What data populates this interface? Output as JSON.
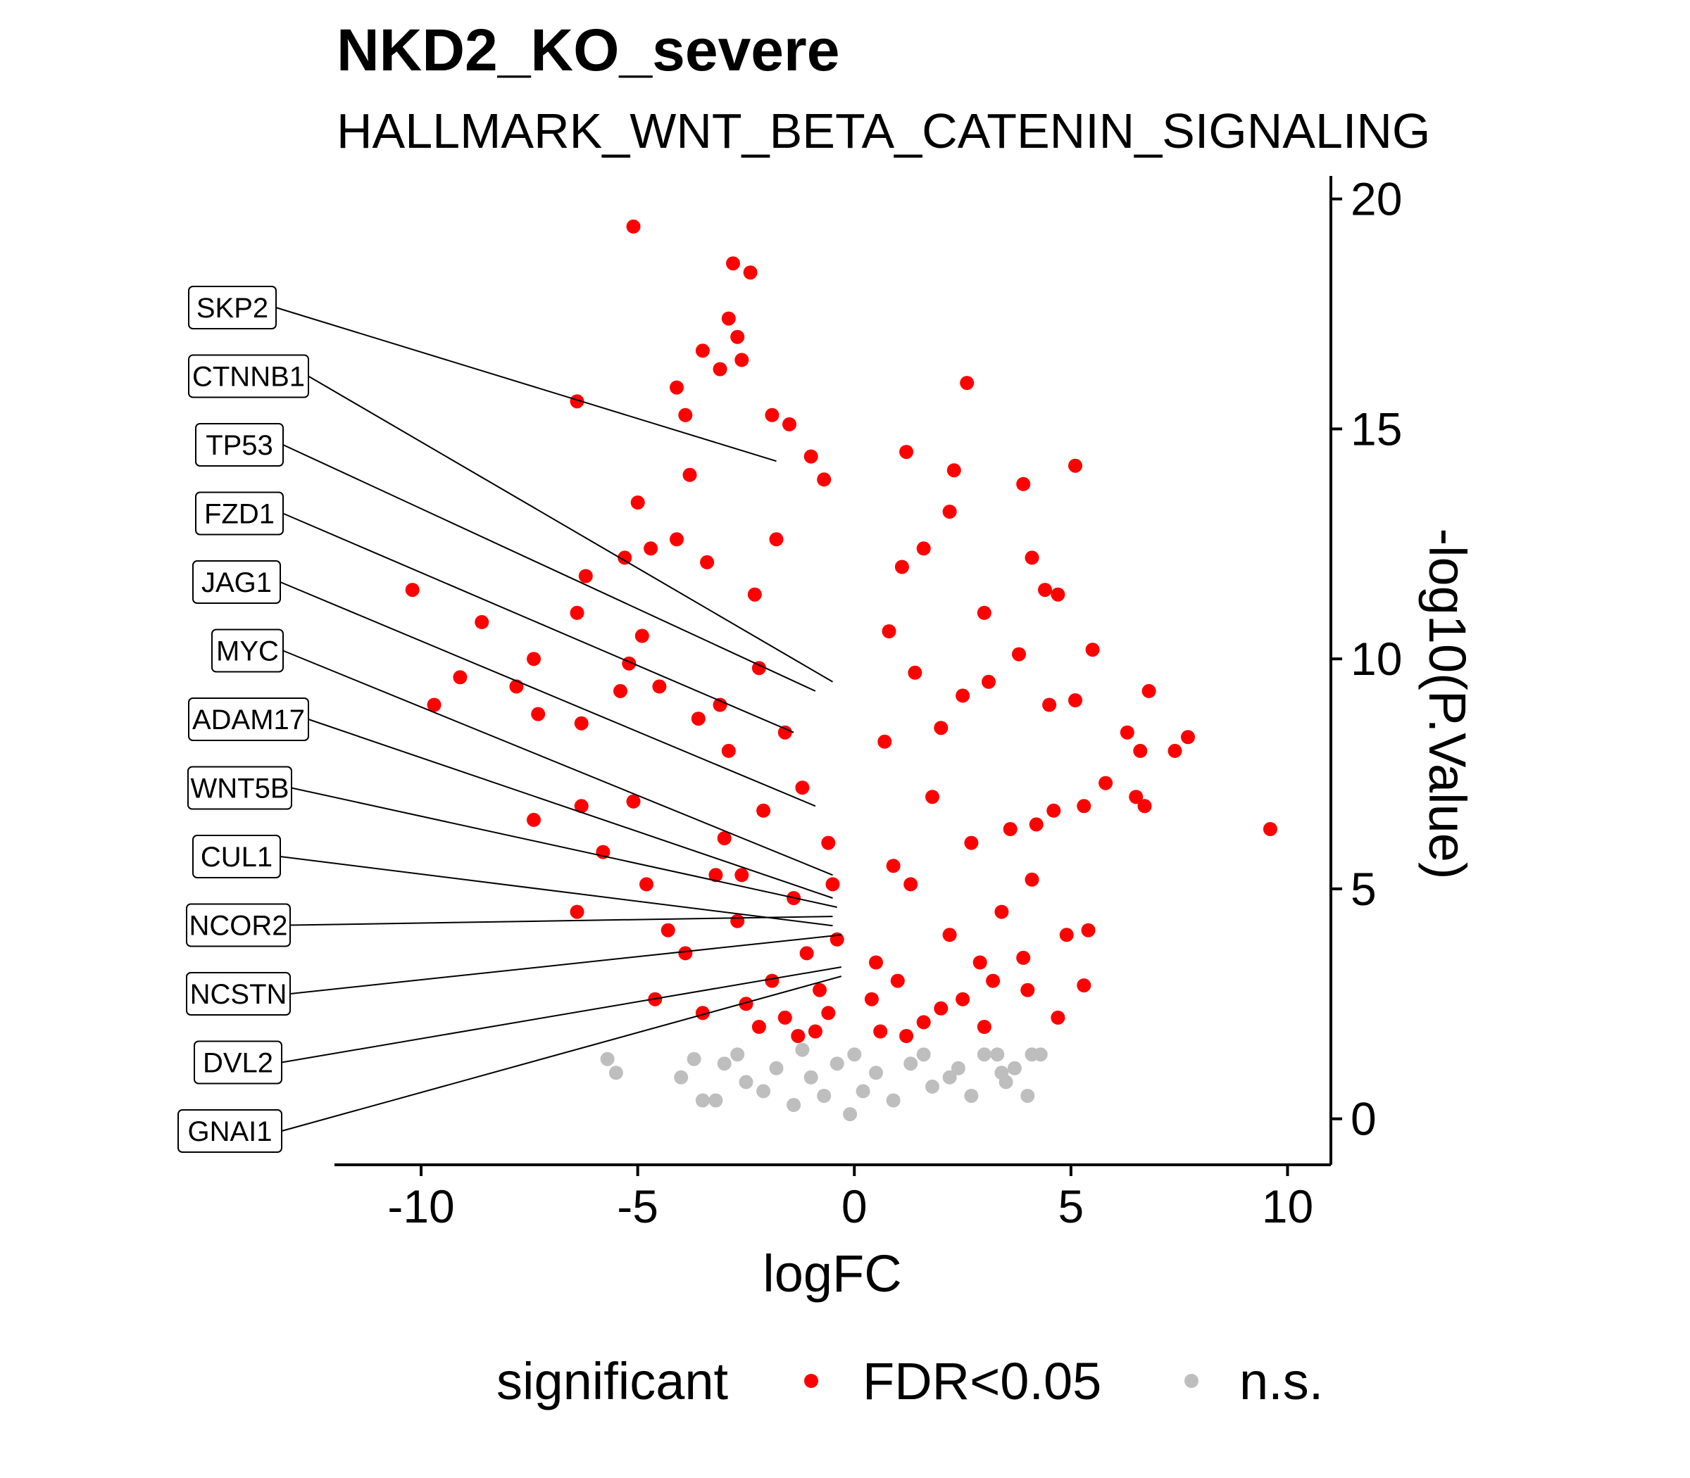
{
  "chart_data": {
    "type": "scatter",
    "title": "NKD2_KO_severe",
    "subtitle": "HALLMARK_WNT_BETA_CATENIN_SIGNALING",
    "xlabel": "logFC",
    "ylabel": "-log10(P.Value)",
    "xlim": [
      -12,
      11
    ],
    "ylim": [
      -1,
      20.5
    ],
    "x_ticks": [
      -10,
      -5,
      0,
      5,
      10
    ],
    "y_ticks": [
      0,
      5,
      10,
      15,
      20
    ],
    "x_tick_labels": [
      "-10",
      "-5",
      "0",
      "5",
      "10"
    ],
    "y_tick_labels": [
      "0",
      "5",
      "10",
      "15",
      "20"
    ],
    "y_axis_position": "right",
    "grid": false,
    "legend": {
      "title": "significant",
      "placement": "bottom",
      "entries": [
        {
          "label": "FDR<0.05",
          "color": "#ff0000"
        },
        {
          "label": "n.s.",
          "color": "#bebebe"
        }
      ]
    },
    "series": [
      {
        "name": "FDR<0.05",
        "color": "#ff0000",
        "points": [
          [
            -5.1,
            19.4
          ],
          [
            -2.8,
            18.6
          ],
          [
            -2.4,
            18.4
          ],
          [
            -2.9,
            17.4
          ],
          [
            -2.7,
            17.0
          ],
          [
            -3.5,
            16.7
          ],
          [
            -2.6,
            16.5
          ],
          [
            -3.1,
            16.3
          ],
          [
            -4.1,
            15.9
          ],
          [
            -6.4,
            15.6
          ],
          [
            2.6,
            16.0
          ],
          [
            -1.9,
            15.3
          ],
          [
            -1.5,
            15.1
          ],
          [
            -3.9,
            15.3
          ],
          [
            1.2,
            14.5
          ],
          [
            -1.0,
            14.4
          ],
          [
            -3.8,
            14.0
          ],
          [
            -5.0,
            13.4
          ],
          [
            -0.7,
            13.9
          ],
          [
            5.1,
            14.2
          ],
          [
            3.9,
            13.8
          ],
          [
            2.3,
            14.1
          ],
          [
            2.2,
            13.2
          ],
          [
            -5.3,
            12.2
          ],
          [
            -4.7,
            12.4
          ],
          [
            -6.2,
            11.8
          ],
          [
            -4.1,
            12.6
          ],
          [
            1.6,
            12.4
          ],
          [
            4.1,
            12.2
          ],
          [
            4.4,
            11.5
          ],
          [
            -10.2,
            11.5
          ],
          [
            -8.6,
            10.8
          ],
          [
            -7.4,
            10.0
          ],
          [
            -9.1,
            9.6
          ],
          [
            -9.7,
            9.0
          ],
          [
            -7.8,
            9.4
          ],
          [
            -7.3,
            8.8
          ],
          [
            -6.3,
            8.6
          ],
          [
            -5.4,
            9.3
          ],
          [
            -6.4,
            11.0
          ],
          [
            4.7,
            11.4
          ],
          [
            3.0,
            11.0
          ],
          [
            5.5,
            10.2
          ],
          [
            3.8,
            10.1
          ],
          [
            6.8,
            9.3
          ],
          [
            7.7,
            8.3
          ],
          [
            7.4,
            8.0
          ],
          [
            6.6,
            8.0
          ],
          [
            6.3,
            8.4
          ],
          [
            5.1,
            9.1
          ],
          [
            4.5,
            9.0
          ],
          [
            5.8,
            7.3
          ],
          [
            6.5,
            7.0
          ],
          [
            6.7,
            6.8
          ],
          [
            9.6,
            6.3
          ],
          [
            -7.4,
            6.5
          ],
          [
            -6.3,
            6.8
          ],
          [
            -6.4,
            4.5
          ],
          [
            -3.5,
            2.3
          ],
          [
            -4.6,
            2.6
          ],
          [
            5.3,
            2.9
          ],
          [
            4.7,
            2.2
          ],
          [
            4.0,
            2.8
          ],
          [
            5.4,
            4.1
          ],
          [
            4.9,
            4.0
          ],
          [
            3.9,
            3.5
          ],
          [
            3.2,
            3.0
          ],
          [
            2.5,
            2.6
          ],
          [
            2.9,
            3.4
          ],
          [
            3.4,
            4.5
          ],
          [
            4.2,
            6.4
          ],
          [
            4.6,
            6.7
          ],
          [
            5.3,
            6.8
          ],
          [
            4.1,
            5.2
          ],
          [
            3.6,
            6.3
          ],
          [
            -4.3,
            4.1
          ],
          [
            -3.9,
            3.6
          ],
          [
            -4.8,
            5.1
          ],
          [
            -5.8,
            5.8
          ],
          [
            -5.1,
            6.9
          ],
          [
            -3.0,
            6.1
          ],
          [
            -2.6,
            5.3
          ],
          [
            -3.6,
            8.7
          ],
          [
            -4.5,
            9.4
          ],
          [
            -5.2,
            9.9
          ],
          [
            -4.9,
            10.5
          ],
          [
            -2.2,
            9.8
          ],
          [
            -1.8,
            12.6
          ],
          [
            -2.3,
            11.4
          ],
          [
            -3.4,
            12.1
          ],
          [
            -3.1,
            9.0
          ],
          [
            -2.9,
            8.0
          ],
          [
            -1.6,
            8.4
          ],
          [
            -1.2,
            7.2
          ],
          [
            -2.1,
            6.7
          ],
          [
            -0.6,
            6.0
          ],
          [
            -0.5,
            5.1
          ],
          [
            -1.4,
            4.8
          ],
          [
            -2.7,
            4.3
          ],
          [
            -3.2,
            5.3
          ],
          [
            -1.1,
            3.6
          ],
          [
            -1.9,
            3.0
          ],
          [
            -2.5,
            2.5
          ],
          [
            -0.8,
            2.8
          ],
          [
            -0.4,
            3.9
          ],
          [
            -1.6,
            2.2
          ],
          [
            -2.2,
            2.0
          ],
          [
            -0.9,
            1.9
          ],
          [
            -0.6,
            2.3
          ],
          [
            -1.3,
            1.8
          ],
          [
            0.5,
            3.4
          ],
          [
            0.9,
            5.5
          ],
          [
            0.7,
            8.2
          ],
          [
            0.8,
            10.6
          ],
          [
            1.1,
            12.0
          ],
          [
            1.4,
            9.7
          ],
          [
            2.0,
            8.5
          ],
          [
            2.5,
            9.2
          ],
          [
            3.1,
            9.5
          ],
          [
            1.8,
            7.0
          ],
          [
            2.7,
            6.0
          ],
          [
            1.3,
            5.1
          ],
          [
            2.2,
            4.0
          ],
          [
            1.0,
            3.0
          ],
          [
            1.6,
            2.1
          ],
          [
            0.6,
            1.9
          ],
          [
            1.2,
            1.8
          ],
          [
            2.0,
            2.4
          ],
          [
            3.0,
            2.0
          ],
          [
            0.4,
            2.6
          ]
        ]
      },
      {
        "name": "n.s.",
        "color": "#bebebe",
        "points": [
          [
            -5.7,
            1.3
          ],
          [
            -5.5,
            1.0
          ],
          [
            -4.0,
            0.9
          ],
          [
            -3.5,
            0.4
          ],
          [
            -3.2,
            0.4
          ],
          [
            -3.7,
            1.3
          ],
          [
            -3.0,
            1.2
          ],
          [
            -2.5,
            0.8
          ],
          [
            -2.1,
            0.6
          ],
          [
            -1.8,
            1.1
          ],
          [
            -1.4,
            0.3
          ],
          [
            -1.0,
            0.9
          ],
          [
            -0.7,
            0.5
          ],
          [
            -0.4,
            1.2
          ],
          [
            -0.1,
            0.1
          ],
          [
            0.2,
            0.6
          ],
          [
            0.5,
            1.0
          ],
          [
            0.9,
            0.4
          ],
          [
            1.3,
            1.2
          ],
          [
            1.8,
            0.7
          ],
          [
            2.2,
            0.9
          ],
          [
            2.7,
            0.5
          ],
          [
            2.4,
            1.1
          ],
          [
            3.0,
            1.4
          ],
          [
            3.4,
            1.0
          ],
          [
            3.7,
            1.1
          ],
          [
            4.1,
            1.4
          ],
          [
            4.3,
            1.4
          ],
          [
            3.5,
            0.8
          ],
          [
            4.0,
            0.5
          ],
          [
            1.6,
            1.4
          ],
          [
            0.0,
            1.4
          ],
          [
            -1.2,
            1.5
          ],
          [
            -2.7,
            1.4
          ],
          [
            3.3,
            1.4
          ]
        ]
      }
    ],
    "annotations": [
      {
        "label": "SKP2",
        "x": -1.8,
        "y": 14.3
      },
      {
        "label": "CTNNB1",
        "x": -0.5,
        "y": 9.5
      },
      {
        "label": "TP53",
        "x": -0.9,
        "y": 9.3
      },
      {
        "label": "FZD1",
        "x": -1.4,
        "y": 8.4
      },
      {
        "label": "JAG1",
        "x": -0.9,
        "y": 6.8
      },
      {
        "label": "MYC",
        "x": -0.5,
        "y": 5.3
      },
      {
        "label": "ADAM17",
        "x": -0.5,
        "y": 4.8
      },
      {
        "label": "WNT5B",
        "x": -0.4,
        "y": 4.6
      },
      {
        "label": "CUL1",
        "x": -0.5,
        "y": 4.2
      },
      {
        "label": "NCOR2",
        "x": -0.5,
        "y": 4.4
      },
      {
        "label": "NCSTN",
        "x": -0.3,
        "y": 4.0
      },
      {
        "label": "DVL2",
        "x": -0.3,
        "y": 3.3
      },
      {
        "label": "GNAI1",
        "x": -0.3,
        "y": 3.1
      }
    ]
  }
}
